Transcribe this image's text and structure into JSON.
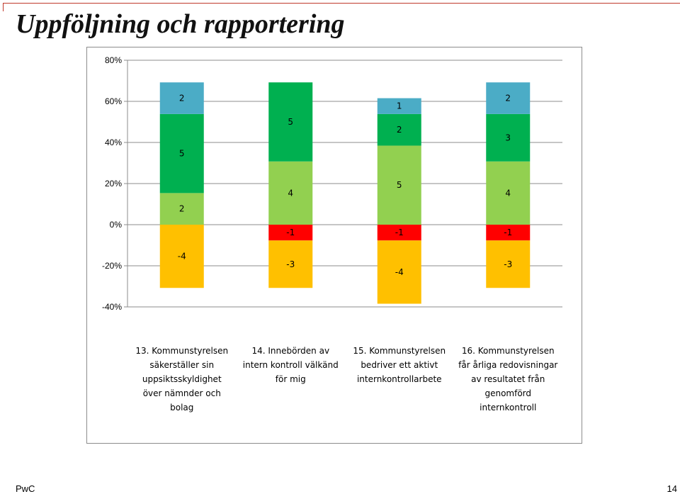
{
  "slide": {
    "title": "Uppföljning och rapportering",
    "footer_brand": "PwC",
    "page_number": "14"
  },
  "chart_data": {
    "type": "bar",
    "stacked": true,
    "diverging": true,
    "ylim": [
      -40,
      80
    ],
    "yticks": [
      -40,
      -20,
      0,
      20,
      40,
      60,
      80
    ],
    "ytick_labels": [
      "-40%",
      "-20%",
      "0%",
      "20%",
      "40%",
      "60%",
      "80%"
    ],
    "grid": true,
    "value_per_response": 7.692,
    "categories": [
      [
        "13. Kommunstyrelsen",
        "säkerställer sin",
        "uppsiktsskyldighet",
        "över nämnder och",
        "bolag"
      ],
      [
        "14. Innebörden av",
        "intern kontroll välkänd",
        "för mig"
      ],
      [
        "15. Kommunstyrelsen",
        "bedriver ett aktivt",
        "internkontrollarbete"
      ],
      [
        "16. Kommunstyrelsen",
        "får årliga redovisningar",
        "av resultatet från",
        "genomförd",
        "internkontroll"
      ]
    ],
    "series": [
      {
        "color": "#FF0000",
        "values": [
          0,
          -1,
          -1,
          -1
        ]
      },
      {
        "color": "#FFC000",
        "values": [
          -4,
          -3,
          -4,
          -3
        ]
      },
      {
        "color": "#92D050",
        "values": [
          2,
          4,
          5,
          4
        ]
      },
      {
        "color": "#00B050",
        "values": [
          5,
          5,
          2,
          3
        ]
      },
      {
        "color": "#4BACC6",
        "values": [
          2,
          0,
          1,
          2
        ]
      }
    ]
  }
}
